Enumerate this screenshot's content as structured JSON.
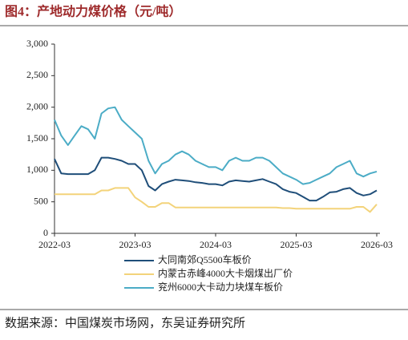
{
  "chart_data": {
    "type": "line",
    "title": "图4：产地动力煤价格（元/吨）",
    "x": [
      "2022-03",
      "2022-04",
      "2022-05",
      "2022-06",
      "2022-07",
      "2022-08",
      "2022-09",
      "2022-10",
      "2022-11",
      "2022-12",
      "2023-01",
      "2023-02",
      "2023-03",
      "2023-04",
      "2023-05",
      "2023-06",
      "2023-07",
      "2023-08",
      "2023-09",
      "2023-10",
      "2023-11",
      "2023-12",
      "2024-01",
      "2024-02",
      "2024-03",
      "2024-04",
      "2024-05",
      "2024-06",
      "2024-07",
      "2024-08",
      "2024-09",
      "2024-10",
      "2024-11",
      "2024-12",
      "2025-01",
      "2025-02",
      "2025-03",
      "2025-04",
      "2025-05",
      "2025-06",
      "2025-07",
      "2025-08",
      "2025-09",
      "2025-10",
      "2025-11",
      "2025-12",
      "2026-01",
      "2026-02",
      "2026-03"
    ],
    "xticks": [
      "2022-03",
      "2023-03",
      "2024-03",
      "2025-03",
      "2026-03"
    ],
    "ylim": [
      0,
      3000
    ],
    "yticks": [
      0,
      500,
      {
        "value": 1000,
        "label": "1,000"
      },
      {
        "value": 1500,
        "label": "1,500"
      },
      {
        "value": 2000,
        "label": "2,000"
      },
      {
        "value": 2500,
        "label": "2,500"
      },
      {
        "value": 3000,
        "label": "3,000"
      }
    ],
    "series": [
      {
        "name": "大同南郊Q5500车板价",
        "color": "#1f4e79",
        "values": [
          1180,
          950,
          940,
          940,
          940,
          940,
          1000,
          1200,
          1200,
          1180,
          1150,
          1100,
          1100,
          1000,
          750,
          680,
          780,
          820,
          850,
          840,
          830,
          810,
          800,
          780,
          780,
          760,
          820,
          840,
          830,
          820,
          840,
          860,
          820,
          780,
          700,
          660,
          640,
          580,
          520,
          520,
          580,
          650,
          660,
          700,
          720,
          640,
          600,
          620,
          680
        ]
      },
      {
        "name": "内蒙古赤峰4000大卡烟煤出厂价",
        "color": "#f3d37a",
        "values": [
          620,
          620,
          620,
          620,
          620,
          620,
          620,
          680,
          680,
          720,
          720,
          720,
          570,
          500,
          420,
          420,
          480,
          480,
          410,
          410,
          410,
          410,
          410,
          410,
          410,
          410,
          410,
          410,
          410,
          410,
          410,
          410,
          410,
          410,
          400,
          400,
          390,
          390,
          390,
          390,
          390,
          390,
          390,
          390,
          390,
          420,
          420,
          340,
          460
        ]
      },
      {
        "name": "兖州6000大卡动力块煤车板价",
        "color": "#4bacc6",
        "values": [
          1800,
          1550,
          1400,
          1550,
          1700,
          1650,
          1500,
          1900,
          1980,
          2000,
          1800,
          1700,
          1600,
          1500,
          1150,
          950,
          1100,
          1150,
          1250,
          1300,
          1250,
          1150,
          1100,
          1050,
          1050,
          1000,
          1150,
          1200,
          1150,
          1150,
          1200,
          1200,
          1150,
          1050,
          950,
          900,
          850,
          780,
          800,
          850,
          900,
          950,
          1050,
          1100,
          1150,
          950,
          900,
          950,
          980
        ]
      }
    ],
    "source": "数据来源：中国煤炭市场网，东吴证券研究所"
  }
}
